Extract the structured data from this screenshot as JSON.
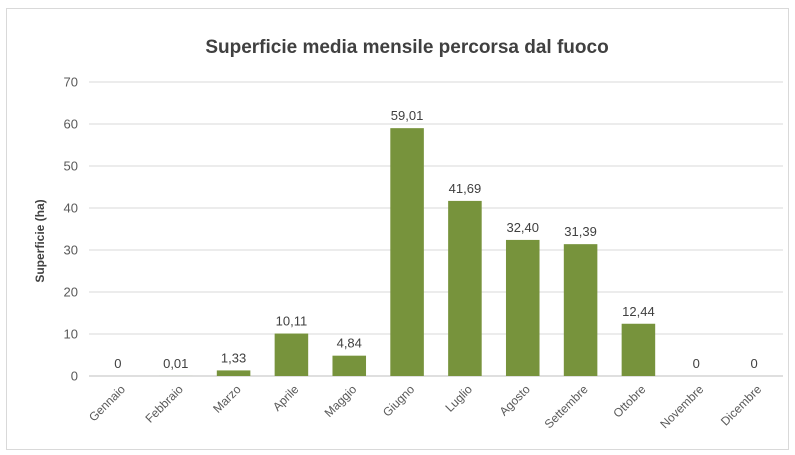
{
  "chart_data": {
    "type": "bar",
    "title": "Superficie media mensile percorsa dal fuoco",
    "ylabel": "Superficie (ha)",
    "xlabel": "",
    "ylim": [
      0,
      70
    ],
    "yticks": [
      0,
      10,
      20,
      30,
      40,
      50,
      60,
      70
    ],
    "grid": true,
    "bar_color": "#77933c",
    "categories": [
      "Gennaio",
      "Febbraio",
      "Marzo",
      "Aprile",
      "Maggio",
      "Giugno",
      "Luglio",
      "Agosto",
      "Settembre",
      "Ottobre",
      "Novembre",
      "Dicembre"
    ],
    "values": [
      0,
      0.01,
      1.33,
      10.11,
      4.84,
      59.01,
      41.69,
      32.4,
      31.39,
      12.44,
      0,
      0
    ],
    "data_labels": [
      "0",
      "0,01",
      "1,33",
      "10,11",
      "4,84",
      "59,01",
      "41,69",
      "32,40",
      "31,39",
      "12,44",
      "0",
      "0"
    ]
  }
}
